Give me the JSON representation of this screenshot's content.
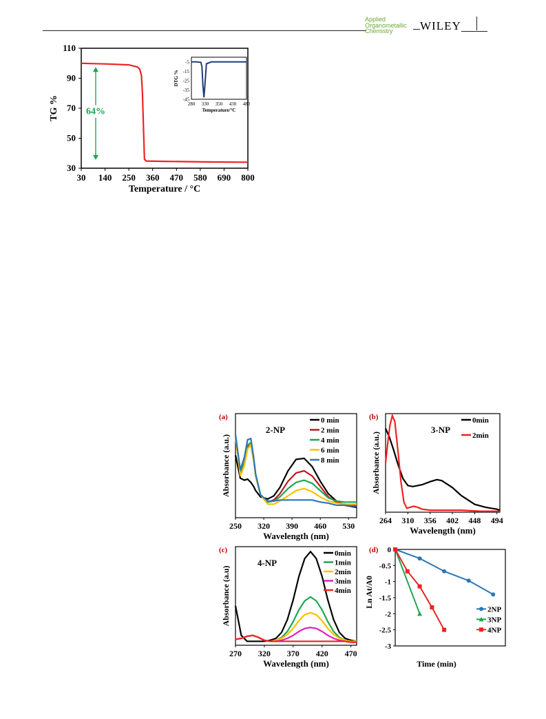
{
  "header": {
    "journal_line1": "Applied",
    "journal_line2": "Organometallic",
    "journal_line3": "Chemistry",
    "publisher": "WILEY"
  },
  "colors": {
    "red": "#ee2222",
    "navy": "#1f3c78",
    "green": "#1aa750",
    "black": "#000000",
    "darkred": "#c0181c",
    "gold": "#ffc000",
    "blue": "#2e75b6",
    "magenta": "#e020c0"
  },
  "chart_data": [
    {
      "id": "tga",
      "type": "line",
      "ylabel": "TG %",
      "xlabel": "Temperature / °C",
      "xlim": [
        30,
        800
      ],
      "ylim": [
        30,
        110
      ],
      "xticks": [
        "30",
        "140",
        "250",
        "360",
        "470",
        "580",
        "690",
        "800"
      ],
      "yticks": [
        "30",
        "50",
        "70",
        "90",
        "110"
      ],
      "annotation": "64%",
      "series": [
        {
          "x": [
            30,
            150,
            250,
            290,
            300,
            308,
            313,
            318,
            322,
            330,
            400,
            600,
            800
          ],
          "y": [
            100,
            99.5,
            98.9,
            97.5,
            96,
            92,
            80,
            55,
            36,
            34.8,
            34.6,
            34.2,
            34
          ]
        }
      ],
      "inset": {
        "ylabel": "DTG %",
        "xlabel": "Temperature/°C",
        "xlim": [
          280,
          500
        ],
        "ylim": [
          -45,
          0
        ],
        "xticks": [
          "280",
          "330",
          "350",
          "430",
          "480"
        ],
        "yticks": [
          "-5",
          "-15",
          "-25",
          "-35",
          "-45"
        ],
        "series": [
          {
            "x": [
              280,
              300,
              318,
              322,
              326,
              330,
              334,
              340,
              360,
              400,
              500
            ],
            "y": [
              -5,
              -5,
              -5.5,
              -10,
              -30,
              -43,
              -30,
              -7,
              -5,
              -5,
              -5
            ]
          }
        ]
      }
    },
    {
      "id": "a",
      "panel_label": "(a)",
      "type": "line",
      "title": "2-NP",
      "xlabel": "Wavelength (nm)",
      "ylabel": "Absorbance (a.u.)",
      "xlim": [
        250,
        550
      ],
      "xticks": [
        "250",
        "320",
        "390",
        "460",
        "530"
      ],
      "series": [
        {
          "name": "0 min",
          "x": [
            250,
            262,
            272,
            280,
            288,
            295,
            300,
            312,
            330,
            345,
            360,
            380,
            400,
            420,
            440,
            460,
            480,
            500,
            520,
            550
          ],
          "y": [
            0.6,
            0.38,
            0.36,
            0.37,
            0.34,
            0.3,
            0.26,
            0.2,
            0.18,
            0.21,
            0.29,
            0.45,
            0.56,
            0.57,
            0.49,
            0.35,
            0.23,
            0.16,
            0.12,
            0.1
          ]
        },
        {
          "name": "2 min",
          "x": [
            250,
            262,
            272,
            280,
            288,
            295,
            300,
            312,
            330,
            345,
            360,
            380,
            400,
            420,
            440,
            460,
            480,
            500,
            520,
            550
          ],
          "y": [
            0.78,
            0.44,
            0.52,
            0.68,
            0.7,
            0.55,
            0.4,
            0.22,
            0.15,
            0.17,
            0.23,
            0.35,
            0.43,
            0.45,
            0.4,
            0.3,
            0.2,
            0.15,
            0.13,
            0.12
          ]
        },
        {
          "name": "4 min",
          "x": [
            250,
            262,
            272,
            280,
            288,
            295,
            300,
            312,
            330,
            345,
            360,
            380,
            400,
            420,
            440,
            460,
            480,
            500,
            520,
            550
          ],
          "y": [
            0.78,
            0.44,
            0.53,
            0.7,
            0.72,
            0.56,
            0.4,
            0.22,
            0.15,
            0.16,
            0.2,
            0.28,
            0.34,
            0.36,
            0.33,
            0.26,
            0.19,
            0.16,
            0.15,
            0.15
          ]
        },
        {
          "name": "6 min",
          "x": [
            250,
            262,
            272,
            280,
            288,
            295,
            300,
            312,
            330,
            345,
            360,
            380,
            400,
            420,
            440,
            460,
            480,
            500,
            520,
            550
          ],
          "y": [
            0.78,
            0.4,
            0.5,
            0.66,
            0.7,
            0.55,
            0.4,
            0.22,
            0.13,
            0.13,
            0.16,
            0.21,
            0.26,
            0.28,
            0.25,
            0.2,
            0.16,
            0.14,
            0.13,
            0.13
          ]
        },
        {
          "name": "8 min",
          "x": [
            250,
            262,
            272,
            280,
            288,
            295,
            300,
            312,
            330,
            345,
            360,
            380,
            400,
            420,
            440,
            460,
            480,
            500,
            520,
            550
          ],
          "y": [
            0.8,
            0.46,
            0.58,
            0.75,
            0.76,
            0.58,
            0.42,
            0.22,
            0.16,
            0.16,
            0.17,
            0.17,
            0.17,
            0.17,
            0.17,
            0.15,
            0.14,
            0.12,
            0.12,
            0.11
          ]
        }
      ]
    },
    {
      "id": "b",
      "panel_label": "(b)",
      "type": "line",
      "title": "3-NP",
      "xlabel": "Wavelength (nm)",
      "ylabel": "Absorbance (a.u.)",
      "xlim": [
        264,
        500
      ],
      "xticks": [
        "264",
        "310",
        "356",
        "402",
        "448",
        "494"
      ],
      "series": [
        {
          "name": "0min",
          "x": [
            264,
            272,
            280,
            290,
            300,
            310,
            320,
            330,
            340,
            356,
            370,
            380,
            402,
            420,
            448,
            470,
            494,
            500
          ],
          "y": [
            0.85,
            0.76,
            0.64,
            0.48,
            0.34,
            0.27,
            0.26,
            0.27,
            0.28,
            0.31,
            0.33,
            0.32,
            0.25,
            0.17,
            0.08,
            0.05,
            0.03,
            0.02
          ]
        },
        {
          "name": "2min",
          "x": [
            264,
            268,
            273,
            278,
            283,
            290,
            296,
            302,
            308,
            315,
            322,
            330,
            340,
            356,
            380,
            420,
            460,
            500
          ],
          "y": [
            0.5,
            0.68,
            0.88,
            0.98,
            0.92,
            0.6,
            0.3,
            0.1,
            0.04,
            0.05,
            0.06,
            0.05,
            0.03,
            0.02,
            0.02,
            0.02,
            0.01,
            0.01
          ]
        }
      ]
    },
    {
      "id": "c",
      "panel_label": "(c)",
      "type": "line",
      "title": "4-NP",
      "xlabel": "Wavelength (nm)",
      "ylabel": "Absorbance (a.u)",
      "xlim": [
        270,
        480
      ],
      "xticks": [
        "270",
        "320",
        "370",
        "420",
        "470"
      ],
      "series": [
        {
          "name": "0min",
          "x": [
            270,
            280,
            290,
            300,
            310,
            320,
            330,
            340,
            350,
            360,
            370,
            380,
            390,
            400,
            410,
            420,
            430,
            440,
            450,
            460,
            470,
            480
          ],
          "y": [
            0.4,
            0.1,
            0.04,
            0.04,
            0.04,
            0.04,
            0.05,
            0.07,
            0.13,
            0.26,
            0.46,
            0.7,
            0.88,
            0.95,
            0.88,
            0.7,
            0.46,
            0.26,
            0.13,
            0.07,
            0.05,
            0.04
          ]
        },
        {
          "name": "1min",
          "x": [
            270,
            280,
            290,
            300,
            310,
            320,
            330,
            340,
            350,
            360,
            370,
            380,
            390,
            400,
            410,
            420,
            430,
            440,
            450,
            460,
            470,
            480
          ],
          "y": [
            0.06,
            0.07,
            0.09,
            0.1,
            0.08,
            0.05,
            0.04,
            0.05,
            0.08,
            0.14,
            0.24,
            0.36,
            0.45,
            0.49,
            0.45,
            0.36,
            0.24,
            0.14,
            0.08,
            0.05,
            0.04,
            0.04
          ]
        },
        {
          "name": "2min",
          "x": [
            270,
            280,
            290,
            300,
            310,
            320,
            330,
            340,
            350,
            360,
            370,
            380,
            390,
            400,
            410,
            420,
            430,
            440,
            450,
            460,
            470,
            480
          ],
          "y": [
            0.06,
            0.07,
            0.09,
            0.1,
            0.08,
            0.05,
            0.04,
            0.05,
            0.07,
            0.11,
            0.17,
            0.25,
            0.31,
            0.33,
            0.31,
            0.25,
            0.17,
            0.11,
            0.07,
            0.05,
            0.04,
            0.04
          ]
        },
        {
          "name": "3min",
          "x": [
            270,
            280,
            290,
            300,
            310,
            320,
            330,
            340,
            350,
            360,
            370,
            380,
            390,
            400,
            410,
            420,
            430,
            440,
            450,
            460,
            470,
            480
          ],
          "y": [
            0.06,
            0.07,
            0.09,
            0.1,
            0.08,
            0.05,
            0.04,
            0.04,
            0.05,
            0.07,
            0.1,
            0.14,
            0.17,
            0.18,
            0.17,
            0.14,
            0.1,
            0.07,
            0.05,
            0.04,
            0.03,
            0.03
          ]
        },
        {
          "name": "4min",
          "x": [
            270,
            280,
            290,
            300,
            310,
            320,
            330,
            340,
            350,
            360,
            370,
            380,
            390,
            400,
            410,
            420,
            430,
            440,
            450,
            460,
            470,
            480
          ],
          "y": [
            0.06,
            0.07,
            0.09,
            0.1,
            0.08,
            0.05,
            0.04,
            0.04,
            0.04,
            0.04,
            0.04,
            0.04,
            0.04,
            0.04,
            0.04,
            0.04,
            0.04,
            0.04,
            0.04,
            0.04,
            0.03,
            0.03
          ]
        }
      ]
    },
    {
      "id": "d",
      "panel_label": "(d)",
      "type": "line",
      "xlabel": "Time (min)",
      "ylabel": "Ln At/A0",
      "ylim": [
        -3,
        0
      ],
      "xlim": [
        0,
        9
      ],
      "yticks": [
        "0",
        "-0.5",
        "-1",
        "-1.5",
        "-2",
        "-2.5",
        "-3"
      ],
      "series": [
        {
          "name": "2NP",
          "x": [
            0,
            2,
            4,
            6,
            8
          ],
          "y": [
            0,
            -0.28,
            -0.68,
            -0.97,
            -1.4
          ]
        },
        {
          "name": "3NP",
          "x": [
            0,
            2
          ],
          "y": [
            0,
            -2.0
          ]
        },
        {
          "name": "4NP",
          "x": [
            0,
            1,
            2,
            3,
            4
          ],
          "y": [
            0,
            -0.68,
            -1.15,
            -1.8,
            -2.5
          ]
        }
      ]
    }
  ]
}
